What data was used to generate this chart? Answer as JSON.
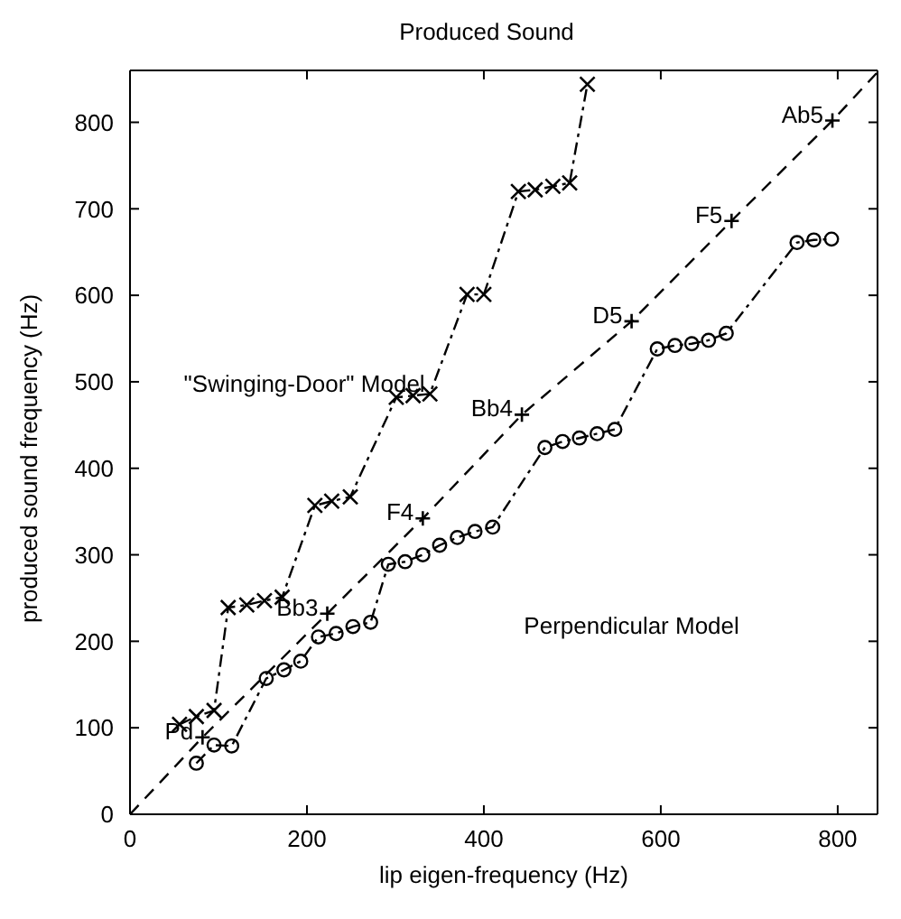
{
  "chart_data": {
    "type": "line",
    "title": "Produced Sound",
    "xlabel": "lip eigen-frequency (Hz)",
    "ylabel": "produced sound frequency (Hz)",
    "xlim": [
      0,
      845
    ],
    "ylim": [
      0,
      860
    ],
    "xticks": [
      0,
      200,
      400,
      600,
      800
    ],
    "yticks": [
      0,
      100,
      200,
      300,
      400,
      500,
      600,
      700,
      800
    ],
    "grid": false,
    "legend": false,
    "series": [
      {
        "type": "line",
        "color": "#000000",
        "line_style": "dashdot",
        "marker": "cross",
        "x": [
          56,
          75,
          95,
          111,
          132,
          152,
          172,
          209,
          228,
          249,
          301,
          320,
          339,
          381,
          400,
          439,
          458,
          478,
          497,
          517
        ],
        "values": [
          104,
          113,
          120,
          239,
          242,
          247,
          251,
          357,
          362,
          367,
          482,
          484,
          486,
          601,
          601,
          720,
          722,
          726,
          730,
          844
        ]
      },
      {
        "type": "line",
        "color": "#000000",
        "line_style": "dashdot",
        "marker": "circle",
        "x": [
          75,
          95,
          115,
          154,
          174,
          193,
          213,
          233,
          252,
          272,
          292,
          311,
          331,
          350,
          370,
          390,
          410,
          469,
          489,
          508,
          528,
          548,
          596,
          616,
          635,
          654,
          674,
          754,
          773,
          793
        ],
        "values": [
          59,
          80,
          79,
          157,
          167,
          177,
          205,
          209,
          217,
          222,
          289,
          292,
          300,
          311,
          320,
          327,
          332,
          424,
          431,
          435,
          440,
          445,
          538,
          542,
          544,
          548,
          556,
          661,
          664,
          665
        ]
      },
      {
        "type": "line",
        "color": "#000000",
        "line_style": "dashed",
        "marker": "none",
        "x": [
          0,
          82,
          223,
          331,
          443,
          567,
          680,
          794,
          845
        ],
        "values": [
          0,
          89,
          232,
          342,
          462,
          570,
          686,
          802,
          858
        ]
      },
      {
        "type": "scatter",
        "color": "#000000",
        "marker": "plus",
        "x": [
          82,
          223,
          331,
          443,
          567,
          680,
          794
        ],
        "values": [
          89,
          232,
          342,
          462,
          570,
          686,
          802
        ]
      }
    ],
    "annotations": [
      {
        "text": "Pd",
        "x": 82,
        "y": 89
      },
      {
        "text": "Bb3",
        "x": 223,
        "y": 232
      },
      {
        "text": "F4",
        "x": 331,
        "y": 342
      },
      {
        "text": "Bb4",
        "x": 443,
        "y": 462
      },
      {
        "text": "D5",
        "x": 567,
        "y": 570
      },
      {
        "text": "F5",
        "x": 680,
        "y": 686
      },
      {
        "text": "Ab5",
        "x": 794,
        "y": 802
      },
      "\"Swinging-Door\" Model",
      "Perpendicular Model"
    ]
  }
}
